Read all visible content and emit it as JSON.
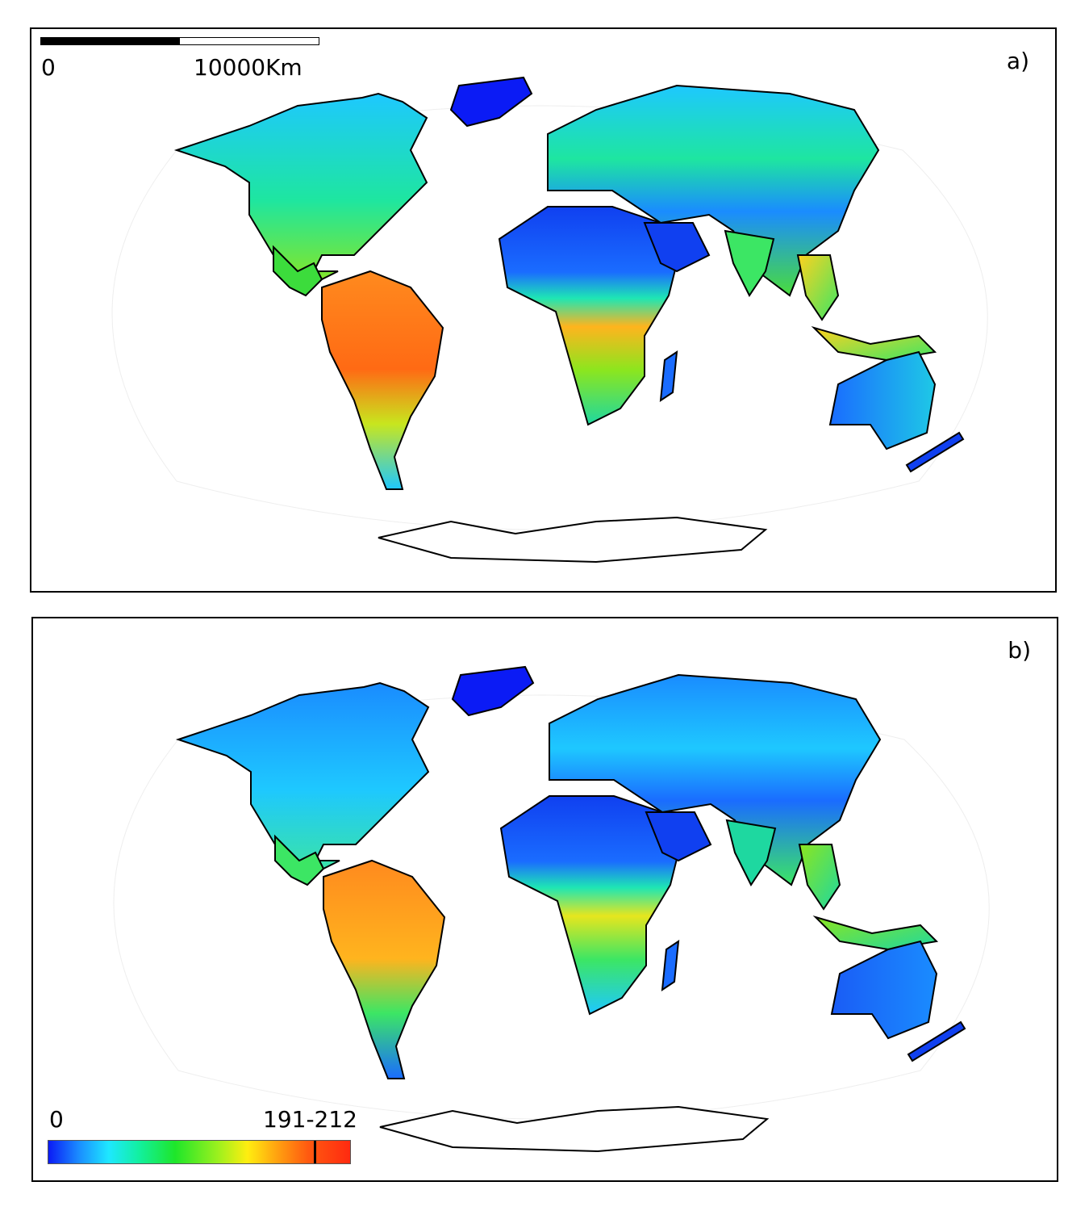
{
  "panels": [
    {
      "id": "a",
      "letter": "a)"
    },
    {
      "id": "b",
      "letter": "b)"
    }
  ],
  "scale_bar": {
    "min_label": "0",
    "max_label": "10000Km"
  },
  "legend": {
    "min_label": "0",
    "max_label": "191-212",
    "marker_fraction": 0.88,
    "colors": [
      "#0b1bf5",
      "#1a8cff",
      "#1ee8ff",
      "#12f0a0",
      "#1ee62a",
      "#9af01e",
      "#ffee10",
      "#ffa010",
      "#ff5a10",
      "#ff2a10"
    ]
  },
  "palette": {
    "low": "#1040f0",
    "mid_low": "#1ec8ff",
    "mid": "#1edc78",
    "high": "#ffd21e",
    "very_high": "#ff6a14",
    "coast": "#000000"
  }
}
